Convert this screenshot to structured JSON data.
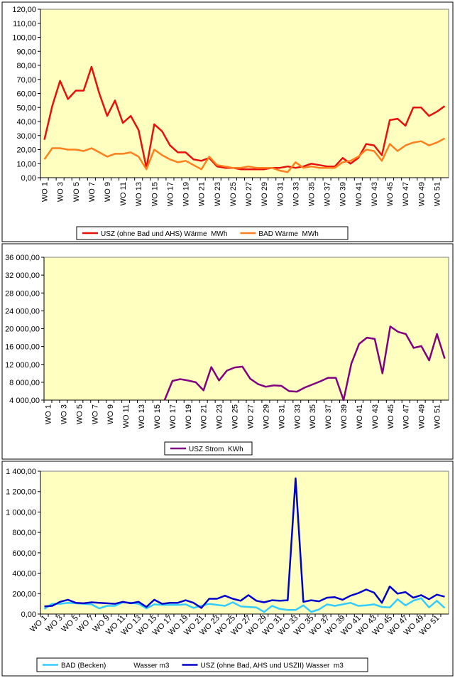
{
  "chart_data": [
    {
      "type": "line",
      "categories": [
        "WO 1",
        null,
        "WO 3",
        null,
        "WO 5",
        null,
        "WO 7",
        null,
        "WO 9",
        null,
        "WO 11",
        null,
        "WO 13",
        null,
        "WO 15",
        null,
        "WO 17",
        null,
        "WO 19",
        null,
        "WO 21",
        null,
        "WO 23",
        null,
        "WO 25",
        null,
        "WO 27",
        null,
        "WO 29",
        null,
        "WO 31",
        null,
        "WO 33",
        null,
        "WO 35",
        null,
        "WO 37",
        null,
        "WO 39",
        null,
        "WO 41",
        null,
        "WO 43",
        null,
        "WO 45",
        null,
        "WO 47",
        null,
        "WO 49",
        null,
        "WO 51",
        null
      ],
      "series": [
        {
          "name": "USZ (ohne Bad und AHS) Wärme  MWh",
          "color": "#e8100c",
          "values": [
            27,
            51,
            69,
            56,
            62,
            62,
            79,
            60,
            44,
            55,
            39,
            44,
            34,
            7,
            38,
            33,
            23,
            18,
            18,
            13,
            12,
            14,
            8,
            7,
            7,
            6,
            6,
            6,
            6,
            7,
            7,
            8,
            7,
            8,
            10,
            9,
            8,
            8,
            14,
            10,
            14,
            24,
            23,
            16,
            41,
            42,
            37,
            50,
            50,
            44,
            47,
            51
          ]
        },
        {
          "name": "BAD Wärme  MWh",
          "color": "#ff7f1e",
          "values": [
            13,
            21,
            21,
            20,
            20,
            19,
            21,
            18,
            15,
            17,
            17,
            18,
            15,
            6,
            20,
            16,
            13,
            11,
            12,
            9,
            6,
            15,
            9,
            8,
            7,
            7,
            8,
            7,
            7,
            7,
            5,
            4,
            11,
            7,
            8,
            7,
            7,
            7,
            11,
            12,
            15,
            20,
            19,
            12,
            24,
            19,
            23,
            25,
            26,
            23,
            25,
            28
          ]
        }
      ],
      "ylim": [
        0,
        120
      ],
      "yticks": [
        {
          "value": 0,
          "label": "0,00"
        },
        {
          "value": 10,
          "label": "10,00"
        },
        {
          "value": 20,
          "label": "20,00"
        },
        {
          "value": 30,
          "label": "30,00"
        },
        {
          "value": 40,
          "label": "40,00"
        },
        {
          "value": 50,
          "label": "50,00"
        },
        {
          "value": 60,
          "label": "60,00"
        },
        {
          "value": 70,
          "label": "70,00"
        },
        {
          "value": 80,
          "label": "80,00"
        },
        {
          "value": 90,
          "label": "90,00"
        },
        {
          "value": 100,
          "label": "100,00"
        },
        {
          "value": 110,
          "label": "110,00"
        },
        {
          "value": 120,
          "label": "120,00"
        }
      ]
    },
    {
      "type": "line",
      "categories": [
        "WO 1",
        null,
        "WO 3",
        null,
        "WO 5",
        null,
        "WO 7",
        null,
        "WO 9",
        null,
        "WO 11",
        null,
        "WO 13",
        null,
        "WO 15",
        null,
        "WO 17",
        null,
        "WO 19",
        null,
        "WO 21",
        null,
        "WO 23",
        null,
        "WO 25",
        null,
        "WO 27",
        null,
        "WO 29",
        null,
        "WO 31",
        null,
        "WO 33",
        null,
        "WO 35",
        null,
        "WO 37",
        null,
        "WO 39",
        null,
        "WO 41",
        null,
        "WO 43",
        null,
        "WO 45",
        null,
        "WO 47",
        null,
        "WO 49",
        null,
        "WO 51",
        null
      ],
      "series": [
        {
          "name": "USZ Strom  KWh",
          "color": "#800080",
          "values": [
            null,
            null,
            null,
            null,
            null,
            null,
            null,
            null,
            null,
            null,
            null,
            null,
            null,
            null,
            null,
            4000,
            8300,
            8700,
            8400,
            8000,
            6200,
            11400,
            8400,
            10600,
            11300,
            11500,
            8800,
            7600,
            7000,
            7300,
            7200,
            6000,
            5900,
            6800,
            7500,
            8200,
            9000,
            9000,
            4000,
            12200,
            16600,
            18000,
            17700,
            10000,
            20500,
            19300,
            18800,
            15700,
            16100,
            12900,
            18800,
            13300
          ]
        }
      ],
      "ylim": [
        4000,
        36000
      ],
      "yticks": [
        {
          "value": 4000,
          "label": "4 000,00"
        },
        {
          "value": 8000,
          "label": "8 000,00"
        },
        {
          "value": 12000,
          "label": "12 000,00"
        },
        {
          "value": 16000,
          "label": "16 000,00"
        },
        {
          "value": 20000,
          "label": "20 000,00"
        },
        {
          "value": 24000,
          "label": "24 000,00"
        },
        {
          "value": 28000,
          "label": "28 000,00"
        },
        {
          "value": 32000,
          "label": "32 000,00"
        },
        {
          "value": 36000,
          "label": "36 000,00"
        }
      ]
    },
    {
      "type": "line",
      "categories": [
        "WO 1",
        null,
        "WO 3",
        null,
        "WO 5",
        null,
        "WO 7",
        null,
        "WO 9",
        null,
        "WO 11",
        null,
        "WO 13",
        null,
        "WO 15",
        null,
        "WO 17",
        null,
        "WO 19",
        null,
        "WO 21",
        null,
        "WO 23",
        null,
        "WO 25",
        null,
        "WO 27",
        null,
        "WO 29",
        null,
        "WO 31",
        null,
        "WO 33",
        null,
        "WO 35",
        null,
        "WO 37",
        null,
        "WO 39",
        null,
        "WO 41",
        null,
        "WO 43",
        null,
        "WO 45",
        null,
        "WO 47",
        null,
        "WO 49",
        null,
        "WO 51",
        null
      ],
      "series": [
        {
          "name": "BAD (Becken)              Wasser m3",
          "color": "#33ccff",
          "values": [
            50,
            100,
            100,
            110,
            105,
            100,
            95,
            55,
            80,
            80,
            115,
            110,
            100,
            55,
            95,
            90,
            90,
            90,
            95,
            60,
            80,
            100,
            90,
            80,
            115,
            75,
            70,
            65,
            20,
            80,
            50,
            40,
            40,
            85,
            20,
            45,
            95,
            80,
            95,
            110,
            80,
            85,
            95,
            70,
            65,
            145,
            85,
            130,
            155,
            65,
            130,
            60
          ]
        },
        {
          "name": "USZ (ohne Bad, AHS und USZII) Wasser  m3",
          "color": "#0000cc",
          "values": [
            75,
            80,
            120,
            140,
            110,
            105,
            115,
            110,
            105,
            100,
            120,
            105,
            120,
            70,
            140,
            100,
            110,
            110,
            135,
            110,
            60,
            150,
            150,
            180,
            150,
            130,
            185,
            130,
            115,
            135,
            130,
            135,
            1330,
            120,
            135,
            125,
            160,
            165,
            140,
            180,
            205,
            240,
            210,
            110,
            270,
            200,
            215,
            160,
            185,
            145,
            190,
            170
          ]
        }
      ],
      "ylim": [
        0,
        1400
      ],
      "yticks": [
        {
          "value": 0,
          "label": "0,00"
        },
        {
          "value": 200,
          "label": "200,00"
        },
        {
          "value": 400,
          "label": "400,00"
        },
        {
          "value": 600,
          "label": "600,00"
        },
        {
          "value": 800,
          "label": "800,00"
        },
        {
          "value": 1000,
          "label": "1 000,00"
        },
        {
          "value": 1200,
          "label": "1 200,00"
        },
        {
          "value": 1400,
          "label": "1 400,00"
        }
      ]
    }
  ]
}
